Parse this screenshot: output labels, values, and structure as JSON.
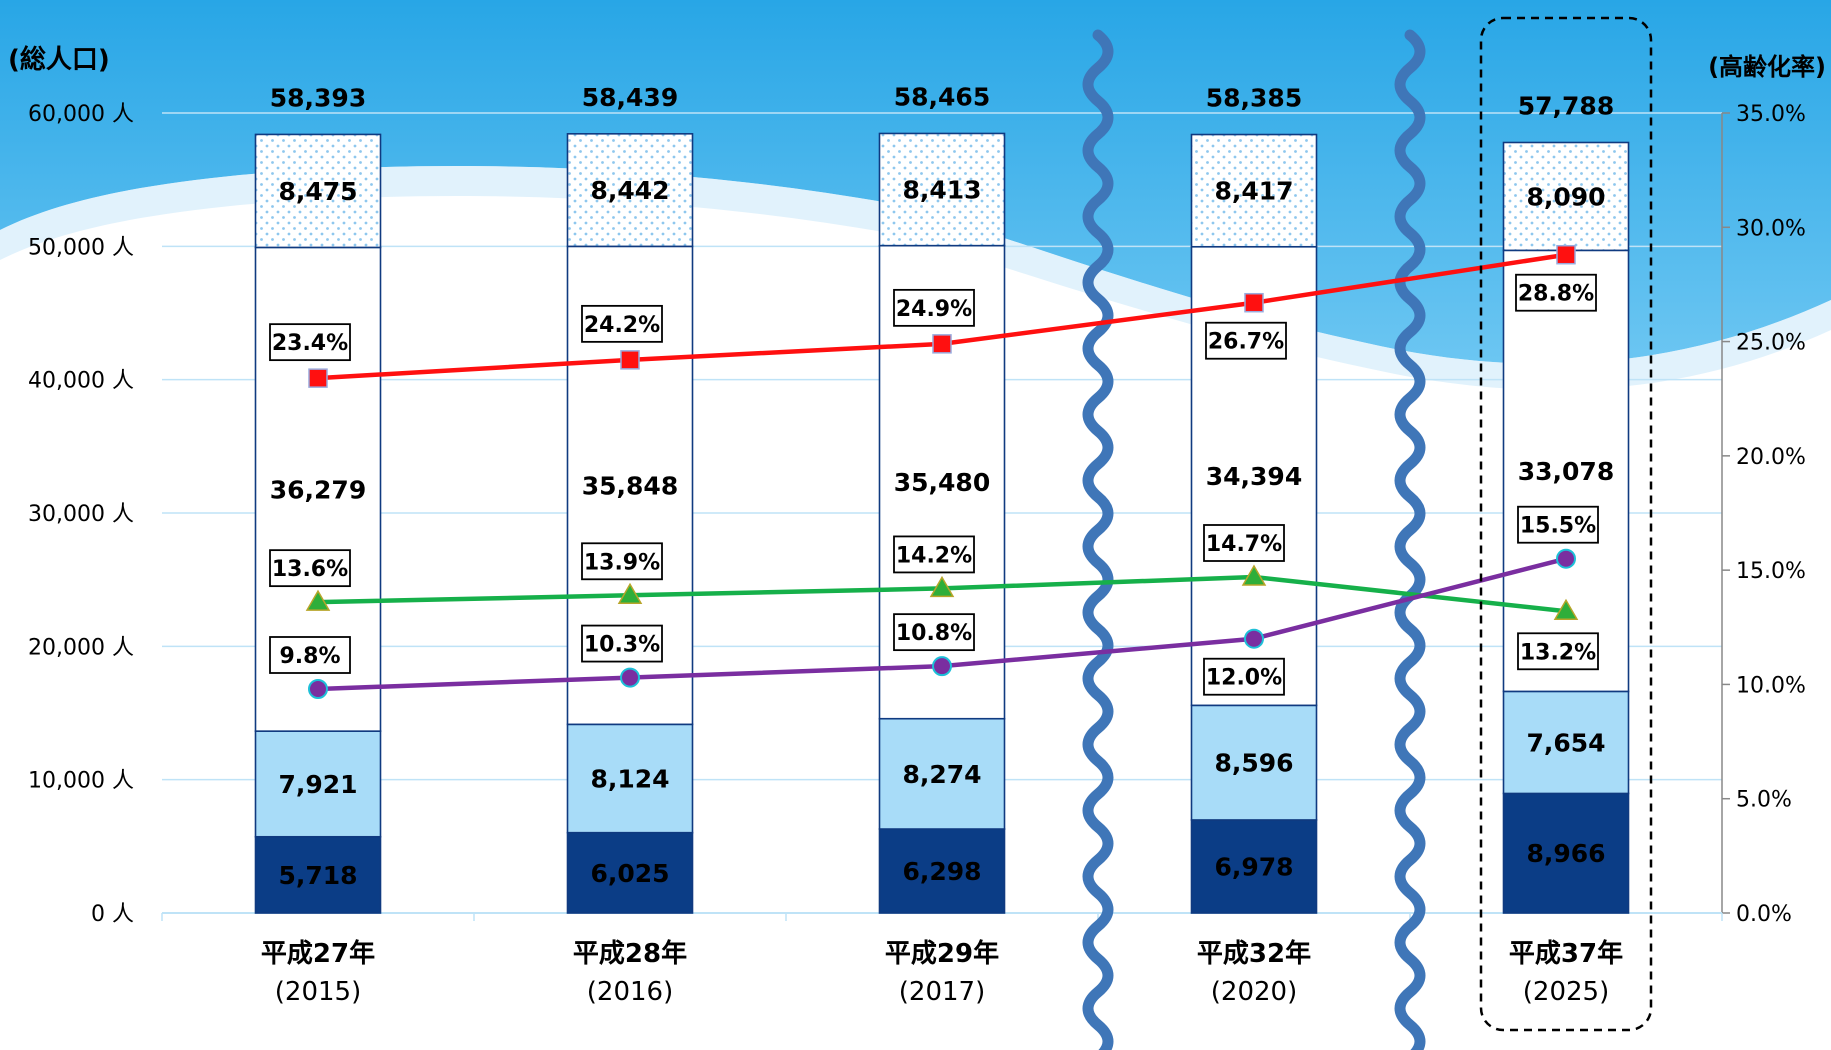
{
  "chart_data": {
    "type": "bar",
    "stacked": true,
    "title": "",
    "ylabel_left": "(総人口)",
    "ylabel_right": "(高齢化率)",
    "ylim_left": [
      0,
      60000
    ],
    "ylim_right": [
      0,
      35
    ],
    "left_ticks": [
      0,
      10000,
      20000,
      30000,
      40000,
      50000,
      60000
    ],
    "left_tick_labels": [
      "0 人",
      "10,000 人",
      "20,000 人",
      "30,000 人",
      "40,000 人",
      "50,000 人",
      "60,000 人"
    ],
    "right_ticks": [
      0,
      5,
      10,
      15,
      20,
      25,
      30,
      35
    ],
    "right_tick_labels": [
      "0.0%",
      "5.0%",
      "10.0%",
      "15.0%",
      "20.0%",
      "25.0%",
      "30.0%",
      "35.0%"
    ],
    "categories": [
      "平成27年",
      "平成28年",
      "平成29年",
      "平成32年",
      "平成37年"
    ],
    "category_years": [
      "(2015)",
      "(2016)",
      "(2017)",
      "(2020)",
      "(2025)"
    ],
    "totals": [
      58393,
      58439,
      58465,
      58385,
      57788
    ],
    "total_labels": [
      "58,393",
      "58,439",
      "58,465",
      "58,385",
      "57,788"
    ],
    "series": [
      {
        "values": [
          5718,
          6025,
          6298,
          6978,
          8966
        ],
        "labels": [
          "5,718",
          "6,025",
          "6,298",
          "6,978",
          "8,966"
        ],
        "color": "#0b3d86"
      },
      {
        "values": [
          7921,
          8124,
          8274,
          8596,
          7654
        ],
        "labels": [
          "7,921",
          "8,124",
          "8,274",
          "8,596",
          "7,654"
        ],
        "color": "#a8dcf8"
      },
      {
        "values": [
          36279,
          35848,
          35480,
          34394,
          33078
        ],
        "labels": [
          "36,279",
          "35,848",
          "35,480",
          "34,394",
          "33,078"
        ],
        "color": "#ffffff"
      },
      {
        "values": [
          8475,
          8442,
          8413,
          8417,
          8090
        ],
        "labels": [
          "8,475",
          "8,442",
          "8,413",
          "8,417",
          "8,090"
        ],
        "color": "#ffffff",
        "pattern": "dots"
      }
    ],
    "line_series": [
      {
        "values": [
          23.4,
          24.2,
          24.9,
          26.7,
          28.8
        ],
        "labels": [
          "23.4%",
          "24.2%",
          "24.9%",
          "26.7%",
          "28.8%"
        ],
        "color": "#ff1010",
        "marker": "square"
      },
      {
        "values": [
          13.6,
          13.9,
          14.2,
          14.7,
          13.2
        ],
        "labels": [
          "13.6%",
          "13.9%",
          "14.2%",
          "14.7%",
          "13.2%"
        ],
        "color": "#16b04a",
        "marker": "triangle"
      },
      {
        "values": [
          9.8,
          10.3,
          10.8,
          12.0,
          15.5
        ],
        "labels": [
          "9.8%",
          "10.3%",
          "10.8%",
          "12.0%",
          "15.5%"
        ],
        "color": "#7a2ea0",
        "marker": "circle"
      }
    ],
    "highlight_category": "平成37年",
    "grid": true,
    "legend": "none"
  }
}
